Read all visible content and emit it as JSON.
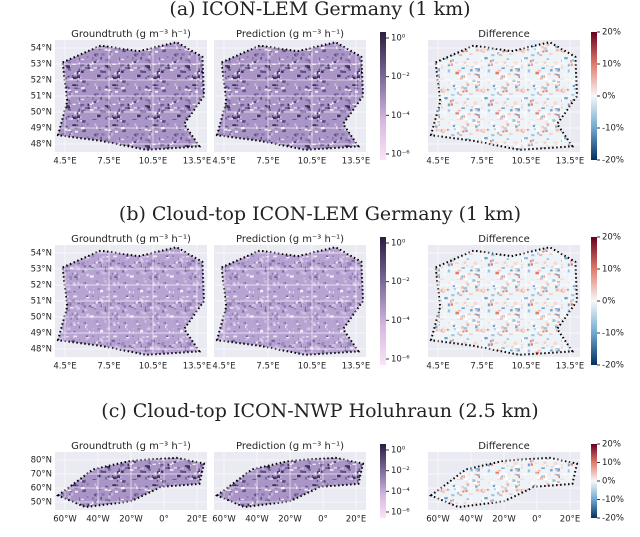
{
  "rows": [
    {
      "title": "(a) ICON-LEM Germany (1 km)",
      "panels": [
        "Groundtruth (g m⁻³ h⁻¹)",
        "Prediction (g m⁻³ h⁻¹)",
        "Difference"
      ],
      "yticks": [
        "54°N",
        "53°N",
        "52°N",
        "51°N",
        "50°N",
        "49°N",
        "48°N"
      ],
      "xticks": [
        "4.5°E",
        "7.5°E",
        "10.5°E",
        "13.5°E"
      ],
      "colorbar_ticks": [
        "10⁰",
        "10⁻²",
        "10⁻⁴",
        "10⁻⁶"
      ],
      "difference_ticks": [
        "20%",
        "10%",
        "0%",
        "-10%",
        "-20%"
      ]
    },
    {
      "title": "(b) Cloud-top ICON-LEM Germany (1 km)",
      "panels": [
        "Groundtruth (g m⁻³ h⁻¹)",
        "Prediction (g m⁻³ h⁻¹)",
        "Difference"
      ],
      "yticks": [
        "54°N",
        "53°N",
        "52°N",
        "51°N",
        "50°N",
        "49°N",
        "48°N"
      ],
      "xticks": [
        "4.5°E",
        "7.5°E",
        "10.5°E",
        "13.5°E"
      ],
      "colorbar_ticks": [
        "10⁰",
        "10⁻²",
        "10⁻⁴",
        "10⁻⁶"
      ],
      "difference_ticks": [
        "20%",
        "10%",
        "0%",
        "-10%",
        "-20%"
      ]
    },
    {
      "title": "(c) Cloud-top ICON-NWP Holuhraun (2.5 km)",
      "panels": [
        "Groundtruth (g m⁻³ h⁻¹)",
        "Prediction (g m⁻³ h⁻¹)",
        "Difference"
      ],
      "yticks": [
        "80°N",
        "70°N",
        "60°N",
        "50°N"
      ],
      "xticks": [
        "60°W",
        "40°W",
        "20°W",
        "0°",
        "20°E"
      ],
      "colorbar_ticks": [
        "10⁰",
        "10⁻²",
        "10⁻⁴",
        "10⁻⁶"
      ],
      "difference_ticks": [
        "20%",
        "10%",
        "0%",
        "-10%",
        "-20%"
      ]
    }
  ]
}
